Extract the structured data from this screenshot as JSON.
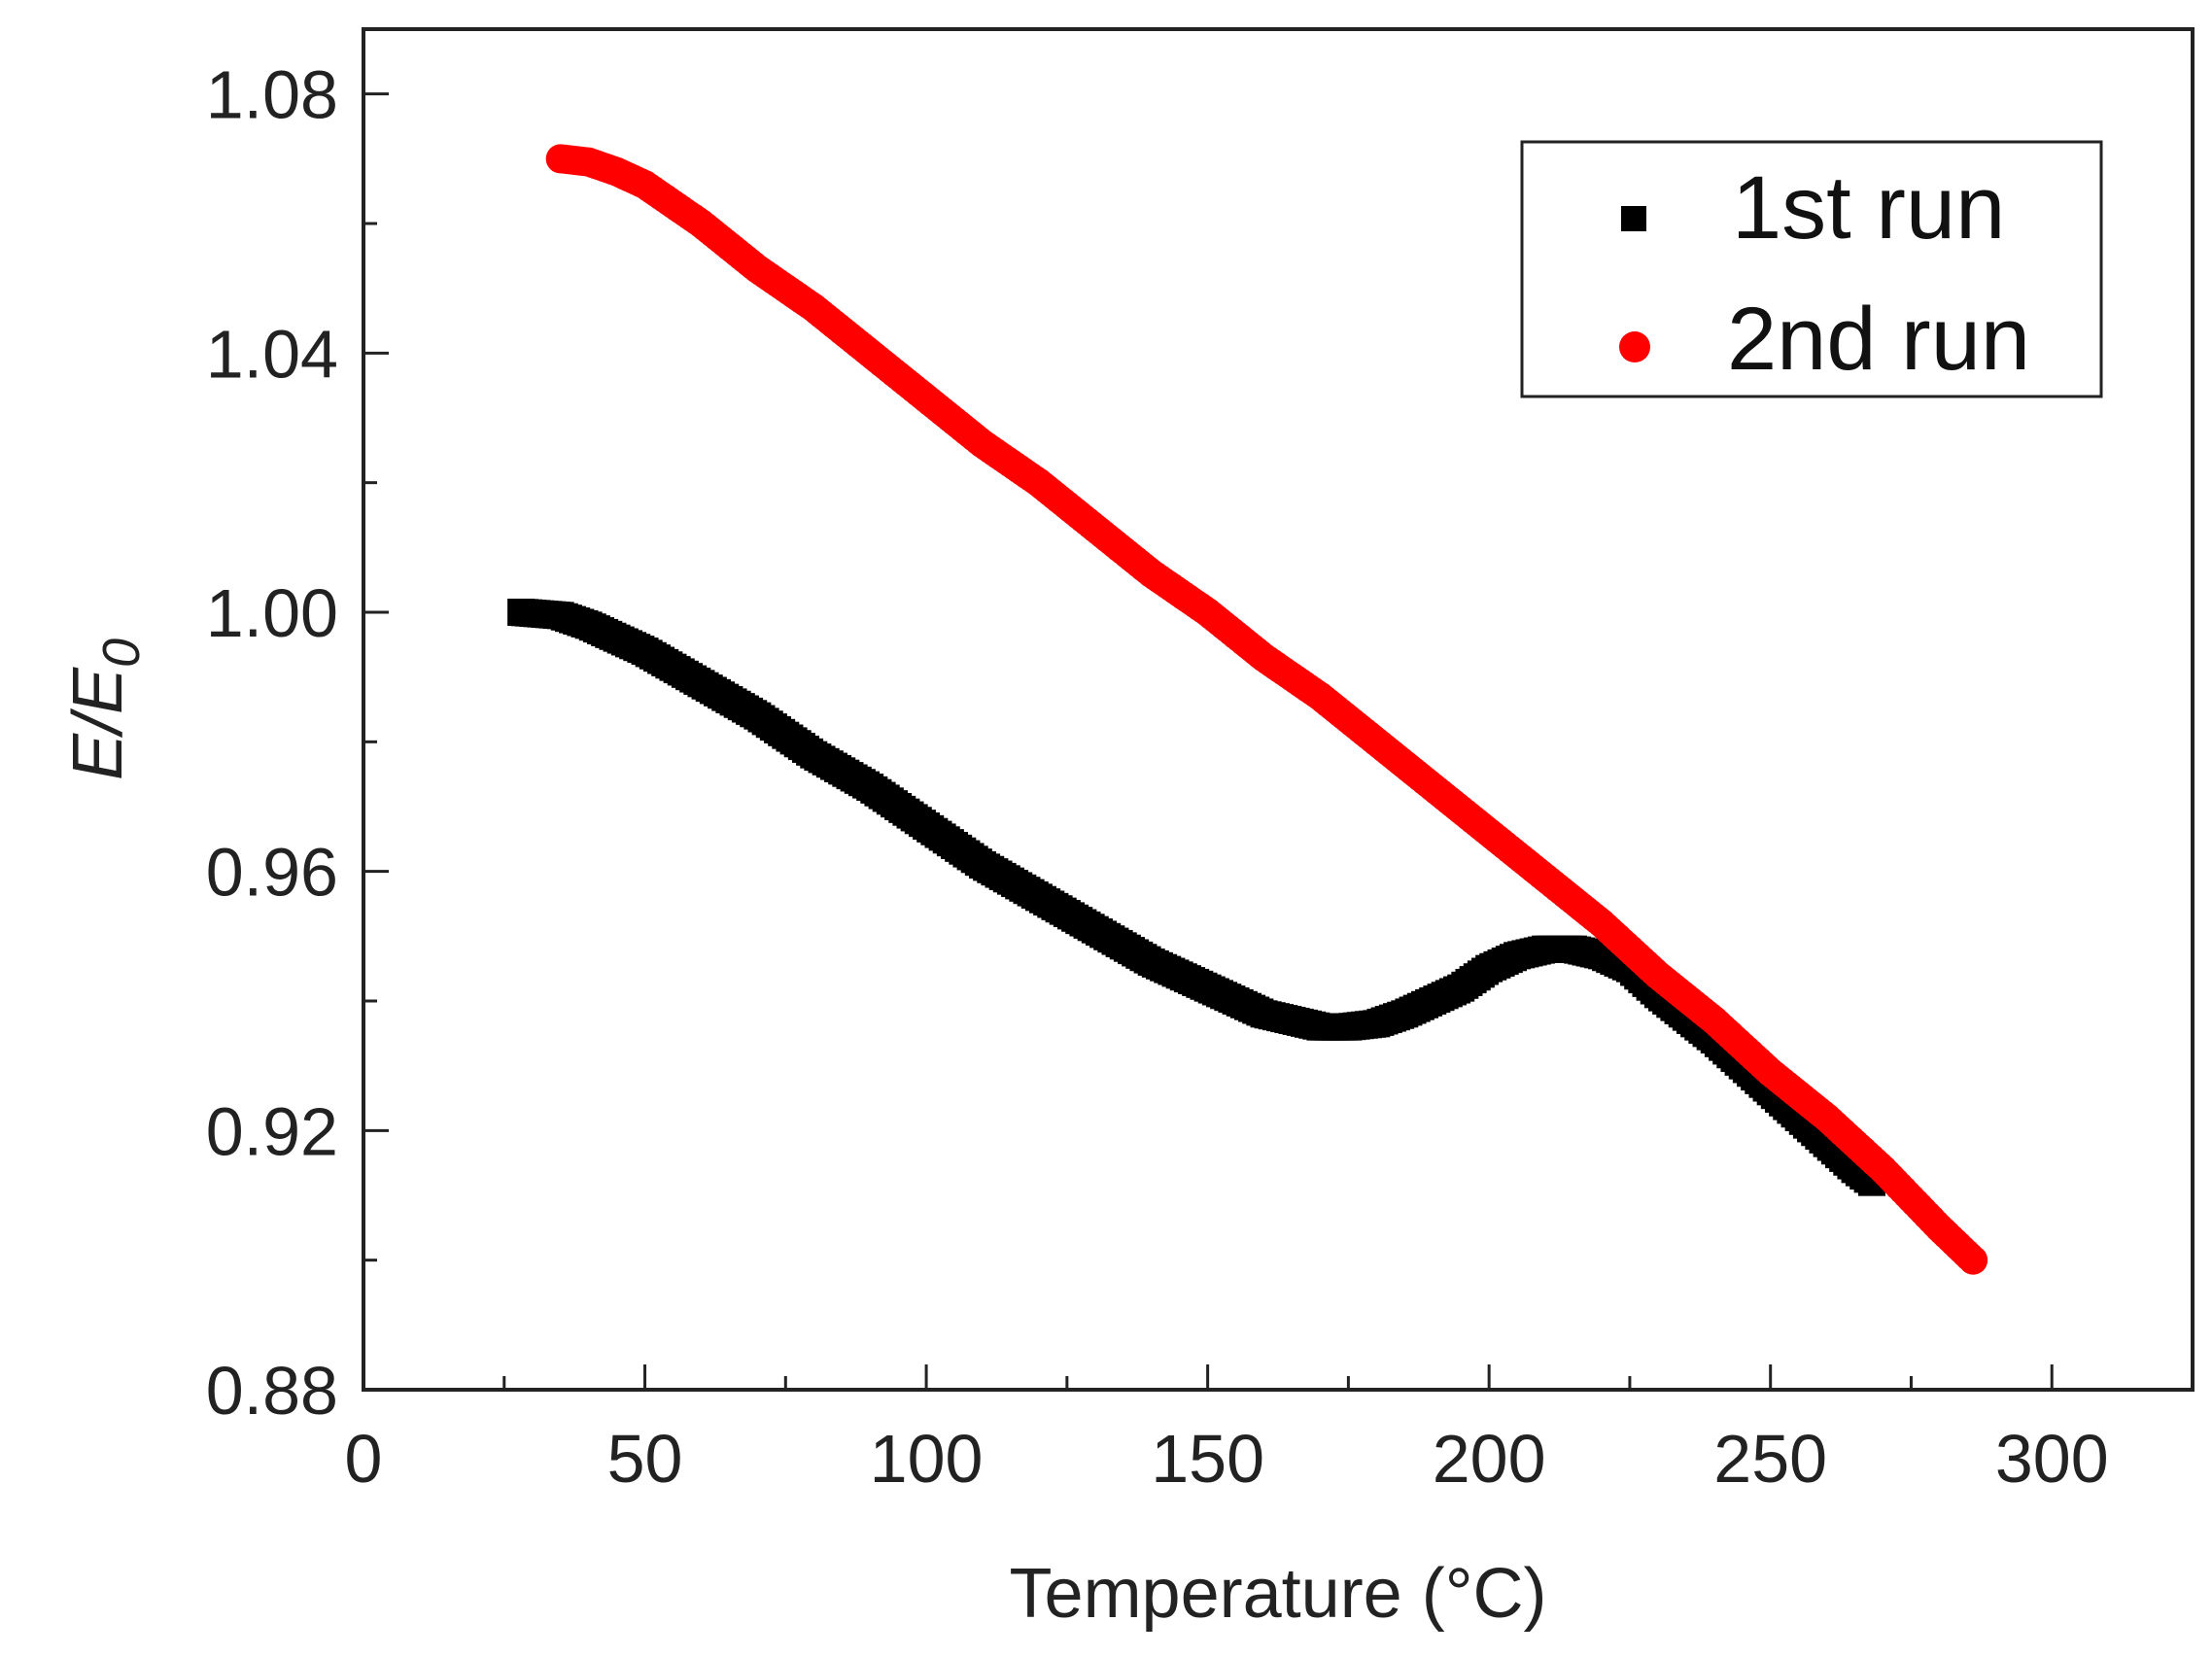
{
  "chart_data": {
    "type": "scatter",
    "title": "",
    "xlabel": "Temperature (°C)",
    "ylabel_main": "E/E",
    "ylabel_sub": "0",
    "xlim": [
      0,
      325
    ],
    "ylim": [
      0.88,
      1.09
    ],
    "x_ticks": [
      0,
      50,
      100,
      150,
      200,
      250,
      300
    ],
    "x_tick_labels": [
      "0",
      "50",
      "100",
      "150",
      "200",
      "250",
      "300"
    ],
    "y_ticks": [
      0.88,
      0.92,
      0.96,
      1.0,
      1.04,
      1.08
    ],
    "y_tick_labels": [
      "0.88",
      "0.92",
      "0.96",
      "1.00",
      "1.04",
      "1.08"
    ],
    "x_minor_step": 25,
    "y_minor_step": 0.02,
    "legend_position": "top-right",
    "series": [
      {
        "name": "1st run",
        "marker": "square",
        "color": "#000000",
        "points": [
          [
            28,
            1.0
          ],
          [
            35,
            0.9995
          ],
          [
            40,
            0.998
          ],
          [
            50,
            0.994
          ],
          [
            60,
            0.989
          ],
          [
            70,
            0.984
          ],
          [
            80,
            0.978
          ],
          [
            90,
            0.973
          ],
          [
            100,
            0.967
          ],
          [
            110,
            0.961
          ],
          [
            120,
            0.956
          ],
          [
            130,
            0.951
          ],
          [
            140,
            0.946
          ],
          [
            150,
            0.942
          ],
          [
            160,
            0.938
          ],
          [
            165,
            0.937
          ],
          [
            170,
            0.936
          ],
          [
            175,
            0.936
          ],
          [
            180,
            0.9365
          ],
          [
            185,
            0.938
          ],
          [
            190,
            0.94
          ],
          [
            195,
            0.942
          ],
          [
            200,
            0.945
          ],
          [
            205,
            0.947
          ],
          [
            210,
            0.948
          ],
          [
            215,
            0.948
          ],
          [
            220,
            0.947
          ],
          [
            225,
            0.945
          ],
          [
            230,
            0.941
          ],
          [
            240,
            0.934
          ],
          [
            250,
            0.926
          ],
          [
            260,
            0.918
          ],
          [
            265,
            0.914
          ],
          [
            268,
            0.912
          ]
        ]
      },
      {
        "name": "2nd run",
        "marker": "circle",
        "color": "#ff0000",
        "points": [
          [
            35,
            1.07
          ],
          [
            40,
            1.0695
          ],
          [
            45,
            1.068
          ],
          [
            50,
            1.066
          ],
          [
            55,
            1.063
          ],
          [
            60,
            1.06
          ],
          [
            70,
            1.053
          ],
          [
            80,
            1.047
          ],
          [
            90,
            1.04
          ],
          [
            100,
            1.033
          ],
          [
            110,
            1.026
          ],
          [
            120,
            1.02
          ],
          [
            130,
            1.013
          ],
          [
            140,
            1.006
          ],
          [
            150,
            1.0
          ],
          [
            160,
            0.993
          ],
          [
            170,
            0.987
          ],
          [
            180,
            0.98
          ],
          [
            190,
            0.973
          ],
          [
            200,
            0.966
          ],
          [
            210,
            0.959
          ],
          [
            220,
            0.952
          ],
          [
            230,
            0.944
          ],
          [
            240,
            0.937
          ],
          [
            250,
            0.929
          ],
          [
            260,
            0.922
          ],
          [
            270,
            0.914
          ],
          [
            280,
            0.905
          ],
          [
            286,
            0.9
          ]
        ]
      }
    ]
  }
}
